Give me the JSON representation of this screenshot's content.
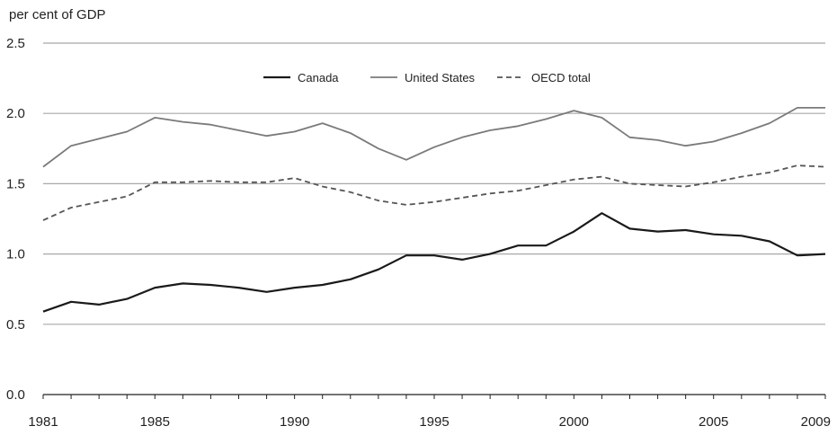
{
  "chart_data": {
    "type": "line",
    "title": "",
    "ylabel": "per cent of GDP",
    "xlabel": "",
    "ylim": [
      0.0,
      2.5
    ],
    "yticks": [
      "0.0",
      "0.5",
      "1.0",
      "1.5",
      "2.0",
      "2.5"
    ],
    "xlim": [
      1981,
      2009
    ],
    "xticks": [
      "1981",
      "1985",
      "1990",
      "1995",
      "2000",
      "2005",
      "2009"
    ],
    "grid": "horizontal",
    "legend_position": "top-center",
    "x": [
      1981,
      1982,
      1983,
      1984,
      1985,
      1986,
      1987,
      1988,
      1989,
      1990,
      1991,
      1992,
      1993,
      1994,
      1995,
      1996,
      1997,
      1998,
      1999,
      2000,
      2001,
      2002,
      2003,
      2004,
      2005,
      2006,
      2007,
      2008,
      2009
    ],
    "series": [
      {
        "name": "Canada",
        "style": "solid",
        "color": "#1a1a1a",
        "values": [
          0.59,
          0.66,
          0.64,
          0.68,
          0.76,
          0.79,
          0.78,
          0.76,
          0.73,
          0.76,
          0.78,
          0.82,
          0.89,
          0.99,
          0.99,
          0.96,
          1.0,
          1.06,
          1.06,
          1.16,
          1.29,
          1.18,
          1.16,
          1.17,
          1.14,
          1.13,
          1.09,
          0.99,
          1.0
        ]
      },
      {
        "name": "United States",
        "style": "solid",
        "color": "#7a7a7a",
        "values": [
          1.62,
          1.77,
          1.82,
          1.87,
          1.97,
          1.94,
          1.92,
          1.88,
          1.84,
          1.87,
          1.93,
          1.86,
          1.75,
          1.67,
          1.76,
          1.83,
          1.88,
          1.91,
          1.96,
          2.02,
          1.97,
          1.83,
          1.81,
          1.77,
          1.8,
          1.86,
          1.93,
          2.04,
          2.04
        ]
      },
      {
        "name": "OECD total",
        "style": "dashed",
        "color": "#555555",
        "values": [
          1.24,
          1.33,
          1.37,
          1.41,
          1.51,
          1.51,
          1.52,
          1.51,
          1.51,
          1.54,
          1.48,
          1.44,
          1.38,
          1.35,
          1.37,
          1.4,
          1.43,
          1.45,
          1.49,
          1.53,
          1.55,
          1.5,
          1.49,
          1.48,
          1.51,
          1.55,
          1.58,
          1.63,
          1.62
        ]
      }
    ]
  }
}
